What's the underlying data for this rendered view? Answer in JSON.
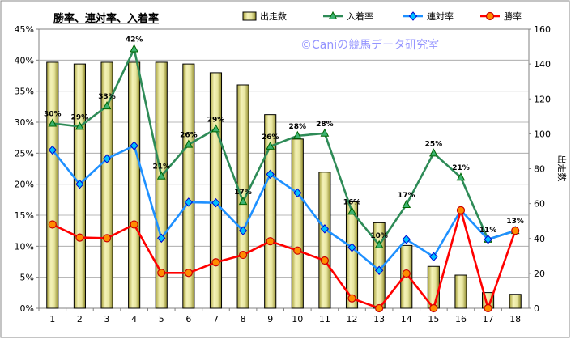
{
  "chart_data": {
    "type": "bar+line",
    "title": "勝率、連対率、入着率",
    "watermark": "©Caniの競馬データ研究室",
    "categories": [
      "1",
      "2",
      "3",
      "4",
      "5",
      "6",
      "7",
      "8",
      "9",
      "10",
      "11",
      "12",
      "13",
      "14",
      "15",
      "16",
      "17",
      "18"
    ],
    "bar_series": {
      "name": "出走数",
      "axis": "right",
      "values": [
        141,
        140,
        141,
        141,
        141,
        140,
        135,
        128,
        111,
        97,
        78,
        61,
        49,
        36,
        24,
        19,
        9,
        8
      ],
      "color": "#E8E6A0"
    },
    "line_series": [
      {
        "name": "入着率",
        "axis": "left",
        "color": "#2E8B57",
        "marker": "triangle",
        "marker_fill": "#3CB371",
        "values": [
          29.8,
          29.3,
          32.6,
          41.8,
          21.3,
          26.4,
          28.9,
          17.2,
          26.1,
          27.8,
          28.2,
          15.6,
          10.2,
          16.7,
          25.0,
          21.1,
          11.1,
          12.5
        ],
        "data_labels": [
          "30%",
          "29%",
          "33%",
          "42%",
          "21%",
          "26%",
          "29%",
          "17%",
          "26%",
          "28%",
          "28%",
          "16%",
          "10%",
          "17%",
          "25%",
          "21%",
          "11%",
          "13%"
        ]
      },
      {
        "name": "連対率",
        "axis": "left",
        "color": "#1E90FF",
        "marker": "diamond",
        "marker_fill": "#00BFFF",
        "values": [
          25.5,
          20.0,
          24.1,
          26.2,
          11.3,
          17.1,
          17.0,
          12.5,
          21.6,
          18.6,
          12.8,
          9.8,
          6.1,
          11.1,
          8.3,
          15.8,
          11.1,
          12.5
        ]
      },
      {
        "name": "勝率",
        "axis": "left",
        "color": "#FF0000",
        "marker": "circle",
        "marker_fill": "#FF8C00",
        "values": [
          13.5,
          11.4,
          11.3,
          13.5,
          5.7,
          5.7,
          7.4,
          8.6,
          10.8,
          9.3,
          7.7,
          1.6,
          0.0,
          5.6,
          0.0,
          15.8,
          0.0,
          12.5
        ]
      }
    ],
    "left_axis": {
      "ylim": [
        0,
        45
      ],
      "ticks": [
        0,
        5,
        10,
        15,
        20,
        25,
        30,
        35,
        40,
        45
      ],
      "tick_labels": [
        "0%",
        "5%",
        "10%",
        "15%",
        "20%",
        "25%",
        "30%",
        "35%",
        "40%",
        "45%"
      ]
    },
    "right_axis": {
      "label": "出走数",
      "ylim": [
        0,
        160
      ],
      "ticks": [
        0,
        20,
        40,
        60,
        80,
        100,
        120,
        140,
        160
      ],
      "tick_labels": [
        "0",
        "20",
        "40",
        "60",
        "80",
        "100",
        "120",
        "140",
        "160"
      ]
    },
    "legend_position": "top",
    "grid": "horizontal"
  }
}
